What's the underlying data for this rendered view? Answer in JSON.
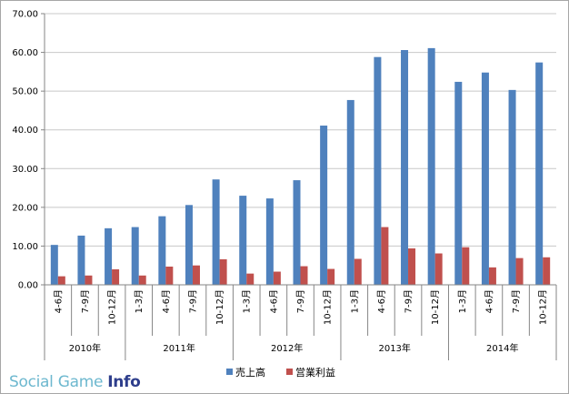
{
  "chart_data": {
    "type": "bar",
    "categories": [
      "4-6月",
      "7-9月",
      "10-12月",
      "1-3月",
      "4-6月",
      "7-9月",
      "10-12月",
      "1-3月",
      "4-6月",
      "7-9月",
      "10-12月",
      "1-3月",
      "4-6月",
      "7-9月",
      "10-12月",
      "1-3月",
      "4-6月",
      "7-9月",
      "10-12月"
    ],
    "groups": [
      {
        "label": "2010年",
        "count": 3
      },
      {
        "label": "2011年",
        "count": 4
      },
      {
        "label": "2012年",
        "count": 4
      },
      {
        "label": "2013年",
        "count": 4
      },
      {
        "label": "2014年",
        "count": 4
      }
    ],
    "series": [
      {
        "name": "売上高",
        "color": "#4f81bd",
        "values": [
          10.3,
          12.7,
          14.6,
          14.9,
          17.7,
          20.6,
          27.2,
          23.0,
          22.3,
          27.0,
          41.1,
          47.7,
          58.8,
          60.6,
          61.1,
          52.4,
          54.8,
          50.3,
          57.4
        ]
      },
      {
        "name": "営業利益",
        "color": "#c0504d",
        "values": [
          2.2,
          2.4,
          4.0,
          2.4,
          4.7,
          5.0,
          6.6,
          2.9,
          3.4,
          4.8,
          4.1,
          6.7,
          14.9,
          9.4,
          8.1,
          9.7,
          4.5,
          6.9,
          7.1
        ]
      }
    ],
    "yticks": [
      "0.00",
      "10.00",
      "20.00",
      "30.00",
      "40.00",
      "50.00",
      "60.00",
      "70.00"
    ],
    "ylim": [
      0,
      70
    ],
    "grid": true,
    "legend_position": "bottom"
  },
  "watermark": {
    "part1": "Social Game ",
    "part2": "Info"
  }
}
